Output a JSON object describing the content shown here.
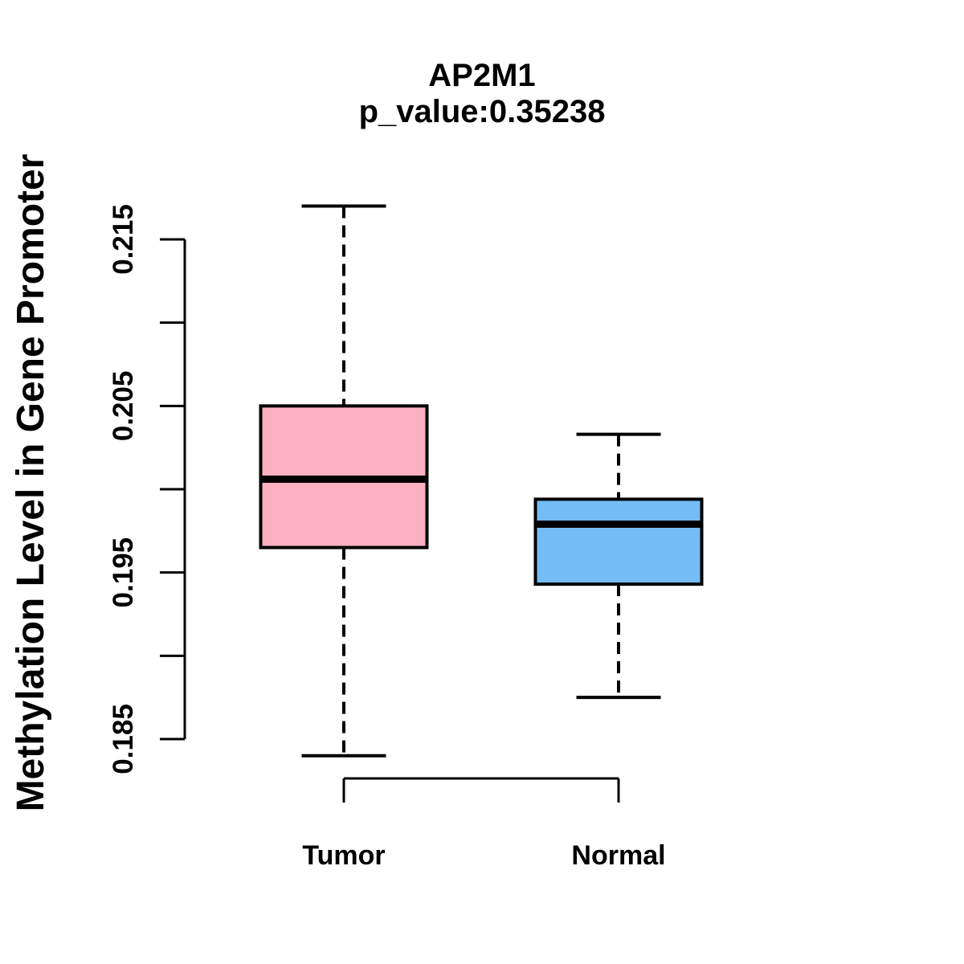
{
  "chart_data": {
    "type": "boxplot",
    "title": "AP2M1",
    "subtitle": "p_value:0.35238",
    "p_value": 0.35238,
    "ylabel": "Methylation Level in Gene Promoter",
    "xlabel": "",
    "categories": [
      "Tumor",
      "Normal"
    ],
    "ylim": [
      0.1835,
      0.2175
    ],
    "y_axis": {
      "tick_start": 0.185,
      "tick_step": 0.005,
      "tick_count": 7,
      "labeled_ticks": [
        {
          "value": 0.185,
          "label": "0.185"
        },
        {
          "value": 0.195,
          "label": "0.195"
        },
        {
          "value": 0.205,
          "label": "0.205"
        },
        {
          "value": 0.215,
          "label": "0.215"
        }
      ]
    },
    "series": [
      {
        "name": "Tumor",
        "color": "#FCB0C2",
        "whisker_low": 0.184,
        "q1": 0.1965,
        "median": 0.2006,
        "q3": 0.205,
        "whisker_high": 0.217
      },
      {
        "name": "Normal",
        "color": "#74BDF6",
        "whisker_low": 0.1875,
        "q1": 0.1943,
        "median": 0.1979,
        "q3": 0.1994,
        "whisker_high": 0.2033
      }
    ],
    "styles": {
      "box_border_color": "#000000",
      "median_color": "#000000",
      "axis_color": "#000000",
      "background": "#FFFFFF",
      "whisker_style": "dashed"
    }
  }
}
